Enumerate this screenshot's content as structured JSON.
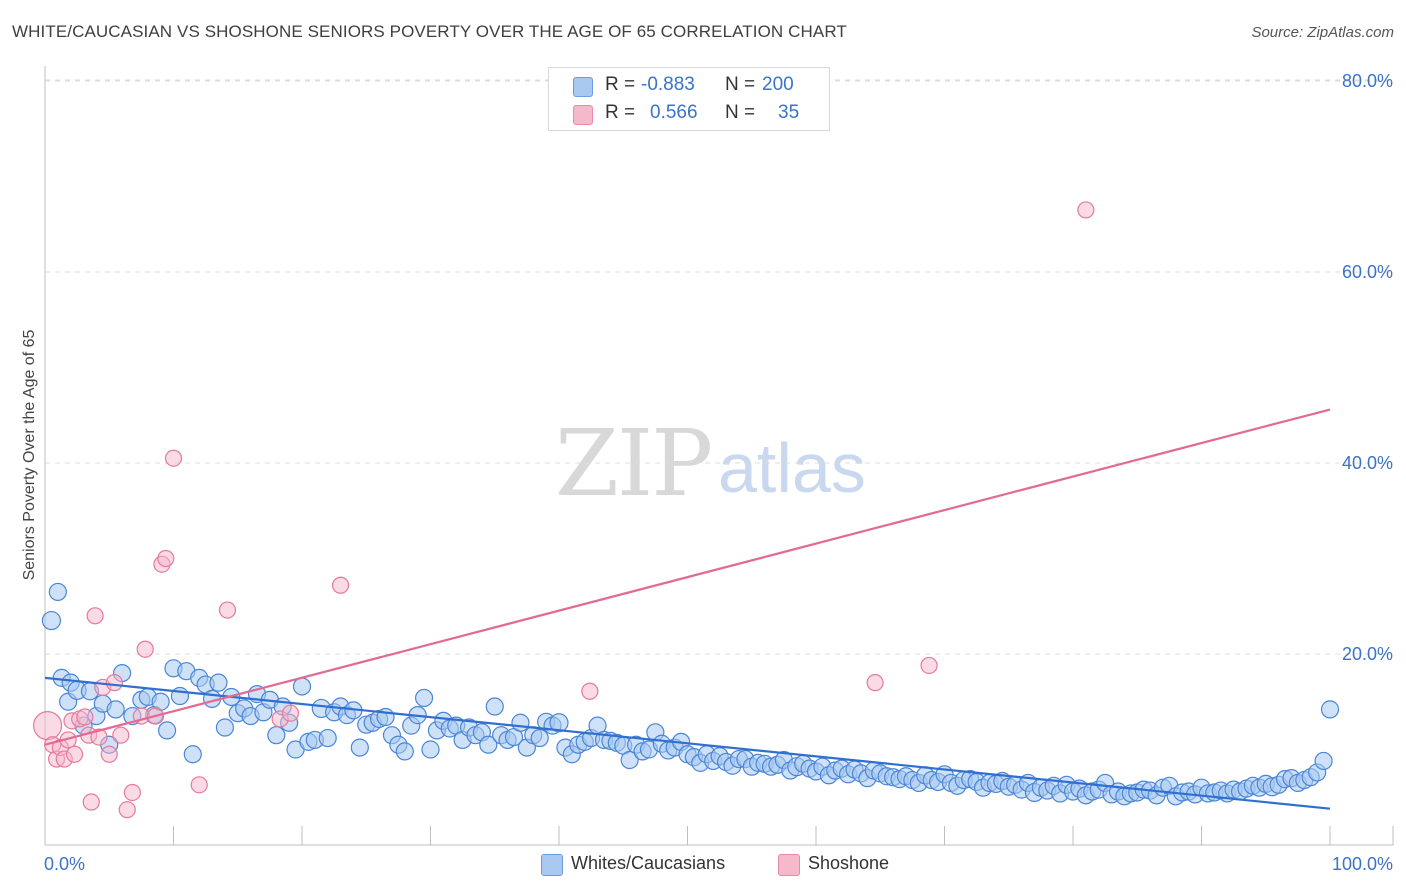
{
  "title": "WHITE/CAUCASIAN VS SHOSHONE SENIORS POVERTY OVER THE AGE OF 65 CORRELATION CHART",
  "source": "Source: ZipAtlas.com",
  "watermark": {
    "zip": "ZIP",
    "atlas": "atlas"
  },
  "legend_top": {
    "rows": [
      {
        "r_label": "R =",
        "r_value": "-0.883",
        "n_label": "N =",
        "n_value": "200",
        "color": "#a8c8f0"
      },
      {
        "r_label": "R =",
        "r_value": "0.566",
        "n_label": "N =",
        "n_value": "35",
        "color": "#f6b8cb"
      }
    ]
  },
  "legend_bottom": [
    {
      "label": "Whites/Caucasians",
      "color": "#a8c8f0"
    },
    {
      "label": "Shoshone",
      "color": "#f6b8cb"
    }
  ],
  "chart_data": {
    "type": "scatter",
    "ylabel": "Seniors Poverty Over the Age of 65",
    "xlim": [
      0,
      100
    ],
    "ylim": [
      0,
      80
    ],
    "x_tick_labels": [
      "0.0%",
      "100.0%"
    ],
    "y_tick_labels": [
      "20.0%",
      "40.0%",
      "60.0%",
      "80.0%"
    ],
    "y_ticks": [
      20,
      40,
      60,
      80
    ],
    "grid": "horizontal dashed",
    "legend_position": "top-center",
    "colors": {
      "white": "#4a86d8",
      "white_fill": "#a8c8f0",
      "white_line": "#2f6fd0",
      "shoshone": "#e6799c",
      "shoshone_fill": "#f6b8cb",
      "shoshone_line": "#e36a93",
      "axis_label": "#3a73c7"
    },
    "series": [
      {
        "name": "Whites/Caucasians",
        "trend": {
          "x": [
            0,
            100
          ],
          "y": [
            17.5,
            3.8
          ]
        },
        "points": [
          [
            0.5,
            23.5
          ],
          [
            1.0,
            26.5
          ],
          [
            1.3,
            17.5
          ],
          [
            1.8,
            15.0
          ],
          [
            2.0,
            17.0
          ],
          [
            2.5,
            16.2
          ],
          [
            3.0,
            12.5
          ],
          [
            3.5,
            16.1
          ],
          [
            4.0,
            13.5
          ],
          [
            4.5,
            14.8
          ],
          [
            5.0,
            10.5
          ],
          [
            5.5,
            14.2
          ],
          [
            6.0,
            18.0
          ],
          [
            6.8,
            13.5
          ],
          [
            7.5,
            15.2
          ],
          [
            8.0,
            15.5
          ],
          [
            8.5,
            13.6
          ],
          [
            9.0,
            15.0
          ],
          [
            9.5,
            12.0
          ],
          [
            10.0,
            18.5
          ],
          [
            10.5,
            15.6
          ],
          [
            11.0,
            18.2
          ],
          [
            11.5,
            9.5
          ],
          [
            12.0,
            17.5
          ],
          [
            12.5,
            16.8
          ],
          [
            13.0,
            15.3
          ],
          [
            13.5,
            17.0
          ],
          [
            14.0,
            12.3
          ],
          [
            14.5,
            15.5
          ],
          [
            15.0,
            13.8
          ],
          [
            15.5,
            14.3
          ],
          [
            16.0,
            13.5
          ],
          [
            16.5,
            15.8
          ],
          [
            17.0,
            13.9
          ],
          [
            17.5,
            15.2
          ],
          [
            18.0,
            11.5
          ],
          [
            18.5,
            14.5
          ],
          [
            19.0,
            12.8
          ],
          [
            19.5,
            10.0
          ],
          [
            20.0,
            16.6
          ],
          [
            20.5,
            10.8
          ],
          [
            21.0,
            11.0
          ],
          [
            21.5,
            14.3
          ],
          [
            22.0,
            11.2
          ],
          [
            22.5,
            13.9
          ],
          [
            23.0,
            14.5
          ],
          [
            23.5,
            13.6
          ],
          [
            24.0,
            14.1
          ],
          [
            24.5,
            10.2
          ],
          [
            25.0,
            12.6
          ],
          [
            25.5,
            12.8
          ],
          [
            26.0,
            13.2
          ],
          [
            26.5,
            13.4
          ],
          [
            27.0,
            11.5
          ],
          [
            27.5,
            10.5
          ],
          [
            28.0,
            9.8
          ],
          [
            28.5,
            12.5
          ],
          [
            29.0,
            13.6
          ],
          [
            29.5,
            15.4
          ],
          [
            30.0,
            10.0
          ],
          [
            30.5,
            12.0
          ],
          [
            31.0,
            13.0
          ],
          [
            31.5,
            12.2
          ],
          [
            32.0,
            12.5
          ],
          [
            32.5,
            11.0
          ],
          [
            33.0,
            12.3
          ],
          [
            33.5,
            11.5
          ],
          [
            34.0,
            11.8
          ],
          [
            34.5,
            10.5
          ],
          [
            35.0,
            14.5
          ],
          [
            35.5,
            11.5
          ],
          [
            36.0,
            11.0
          ],
          [
            36.5,
            11.3
          ],
          [
            37.0,
            12.8
          ],
          [
            37.5,
            10.2
          ],
          [
            38.0,
            11.5
          ],
          [
            38.5,
            11.2
          ],
          [
            39.0,
            12.9
          ],
          [
            39.5,
            12.5
          ],
          [
            40.0,
            12.8
          ],
          [
            40.5,
            10.2
          ],
          [
            41.0,
            9.5
          ],
          [
            41.5,
            10.5
          ],
          [
            42.0,
            10.8
          ],
          [
            42.5,
            11.2
          ],
          [
            43.0,
            12.5
          ],
          [
            43.5,
            11.0
          ],
          [
            44.0,
            10.9
          ],
          [
            44.5,
            10.7
          ],
          [
            45.0,
            10.4
          ],
          [
            45.5,
            8.9
          ],
          [
            46.0,
            10.5
          ],
          [
            46.5,
            9.8
          ],
          [
            47.0,
            10.0
          ],
          [
            47.5,
            11.8
          ],
          [
            48.0,
            10.6
          ],
          [
            48.5,
            9.9
          ],
          [
            49.0,
            10.2
          ],
          [
            49.5,
            10.8
          ],
          [
            50.0,
            9.5
          ],
          [
            50.5,
            9.2
          ],
          [
            51.0,
            8.6
          ],
          [
            51.5,
            9.5
          ],
          [
            52.0,
            8.8
          ],
          [
            52.5,
            9.3
          ],
          [
            53.0,
            8.7
          ],
          [
            53.5,
            8.3
          ],
          [
            54.0,
            9.0
          ],
          [
            54.5,
            9.0
          ],
          [
            55.0,
            8.2
          ],
          [
            55.5,
            8.6
          ],
          [
            56.0,
            8.5
          ],
          [
            56.5,
            8.2
          ],
          [
            57.0,
            8.4
          ],
          [
            57.5,
            8.9
          ],
          [
            58.0,
            7.8
          ],
          [
            58.5,
            8.2
          ],
          [
            59.0,
            8.5
          ],
          [
            59.5,
            8.0
          ],
          [
            60.0,
            7.7
          ],
          [
            60.5,
            8.2
          ],
          [
            61.0,
            7.3
          ],
          [
            61.5,
            7.8
          ],
          [
            62.0,
            8.0
          ],
          [
            62.5,
            7.4
          ],
          [
            63.0,
            7.9
          ],
          [
            63.5,
            7.5
          ],
          [
            64.0,
            7.0
          ],
          [
            64.5,
            7.8
          ],
          [
            65.0,
            7.5
          ],
          [
            65.5,
            7.2
          ],
          [
            66.0,
            7.1
          ],
          [
            66.5,
            6.9
          ],
          [
            67.0,
            7.2
          ],
          [
            67.5,
            6.8
          ],
          [
            68.0,
            6.5
          ],
          [
            68.5,
            7.3
          ],
          [
            69.0,
            6.8
          ],
          [
            69.5,
            6.6
          ],
          [
            70.0,
            7.4
          ],
          [
            70.5,
            6.5
          ],
          [
            71.0,
            6.2
          ],
          [
            71.5,
            6.8
          ],
          [
            72.0,
            6.9
          ],
          [
            72.5,
            6.6
          ],
          [
            73.0,
            6.0
          ],
          [
            73.5,
            6.5
          ],
          [
            74.0,
            6.4
          ],
          [
            74.5,
            6.7
          ],
          [
            75.0,
            6.1
          ],
          [
            75.5,
            6.3
          ],
          [
            76.0,
            5.8
          ],
          [
            76.5,
            6.5
          ],
          [
            77.0,
            5.5
          ],
          [
            77.5,
            6.0
          ],
          [
            78.0,
            5.7
          ],
          [
            78.5,
            6.2
          ],
          [
            79.0,
            5.4
          ],
          [
            79.5,
            6.3
          ],
          [
            80.0,
            5.6
          ],
          [
            80.5,
            5.9
          ],
          [
            81.0,
            5.2
          ],
          [
            81.5,
            5.6
          ],
          [
            82.0,
            5.8
          ],
          [
            82.5,
            6.5
          ],
          [
            83.0,
            5.3
          ],
          [
            83.5,
            5.6
          ],
          [
            84.0,
            5.1
          ],
          [
            84.5,
            5.4
          ],
          [
            85.0,
            5.5
          ],
          [
            85.5,
            5.8
          ],
          [
            86.0,
            5.7
          ],
          [
            86.5,
            5.2
          ],
          [
            87.0,
            6.0
          ],
          [
            87.5,
            6.2
          ],
          [
            88.0,
            5.1
          ],
          [
            88.5,
            5.5
          ],
          [
            89.0,
            5.6
          ],
          [
            89.5,
            5.3
          ],
          [
            90.0,
            6.0
          ],
          [
            90.5,
            5.4
          ],
          [
            91.0,
            5.5
          ],
          [
            91.5,
            5.7
          ],
          [
            92.0,
            5.4
          ],
          [
            92.5,
            5.8
          ],
          [
            93.0,
            5.6
          ],
          [
            93.5,
            5.9
          ],
          [
            94.0,
            6.2
          ],
          [
            94.5,
            6.0
          ],
          [
            95.0,
            6.4
          ],
          [
            95.5,
            6.1
          ],
          [
            96.0,
            6.3
          ],
          [
            96.5,
            6.9
          ],
          [
            97.0,
            7.0
          ],
          [
            97.5,
            6.5
          ],
          [
            98.0,
            6.8
          ],
          [
            98.5,
            7.1
          ],
          [
            99.0,
            7.6
          ],
          [
            99.5,
            8.8
          ],
          [
            100.0,
            14.2
          ]
        ]
      },
      {
        "name": "Shoshone",
        "trend": {
          "x": [
            0,
            100
          ],
          "y": [
            10.5,
            45.6
          ]
        },
        "points": [
          [
            0.2,
            12.5
          ],
          [
            0.6,
            10.5
          ],
          [
            0.9,
            9.0
          ],
          [
            1.2,
            10.2
          ],
          [
            1.5,
            9.0
          ],
          [
            1.8,
            11.0
          ],
          [
            2.1,
            13.0
          ],
          [
            2.3,
            9.5
          ],
          [
            2.7,
            13.2
          ],
          [
            3.1,
            13.4
          ],
          [
            3.4,
            11.5
          ],
          [
            3.6,
            4.5
          ],
          [
            3.9,
            24.0
          ],
          [
            4.2,
            11.3
          ],
          [
            4.5,
            16.5
          ],
          [
            5.0,
            9.5
          ],
          [
            5.4,
            17.0
          ],
          [
            5.9,
            11.5
          ],
          [
            6.4,
            3.7
          ],
          [
            6.8,
            5.5
          ],
          [
            7.5,
            13.5
          ],
          [
            7.8,
            20.5
          ],
          [
            8.6,
            13.5
          ],
          [
            9.1,
            29.4
          ],
          [
            9.4,
            30.0
          ],
          [
            10.0,
            40.5
          ],
          [
            12.0,
            6.3
          ],
          [
            14.2,
            24.6
          ],
          [
            18.3,
            13.2
          ],
          [
            19.1,
            13.8
          ],
          [
            23.0,
            27.2
          ],
          [
            42.4,
            16.1
          ],
          [
            64.6,
            17.0
          ],
          [
            68.8,
            18.8
          ],
          [
            81.0,
            66.5
          ]
        ]
      }
    ]
  }
}
